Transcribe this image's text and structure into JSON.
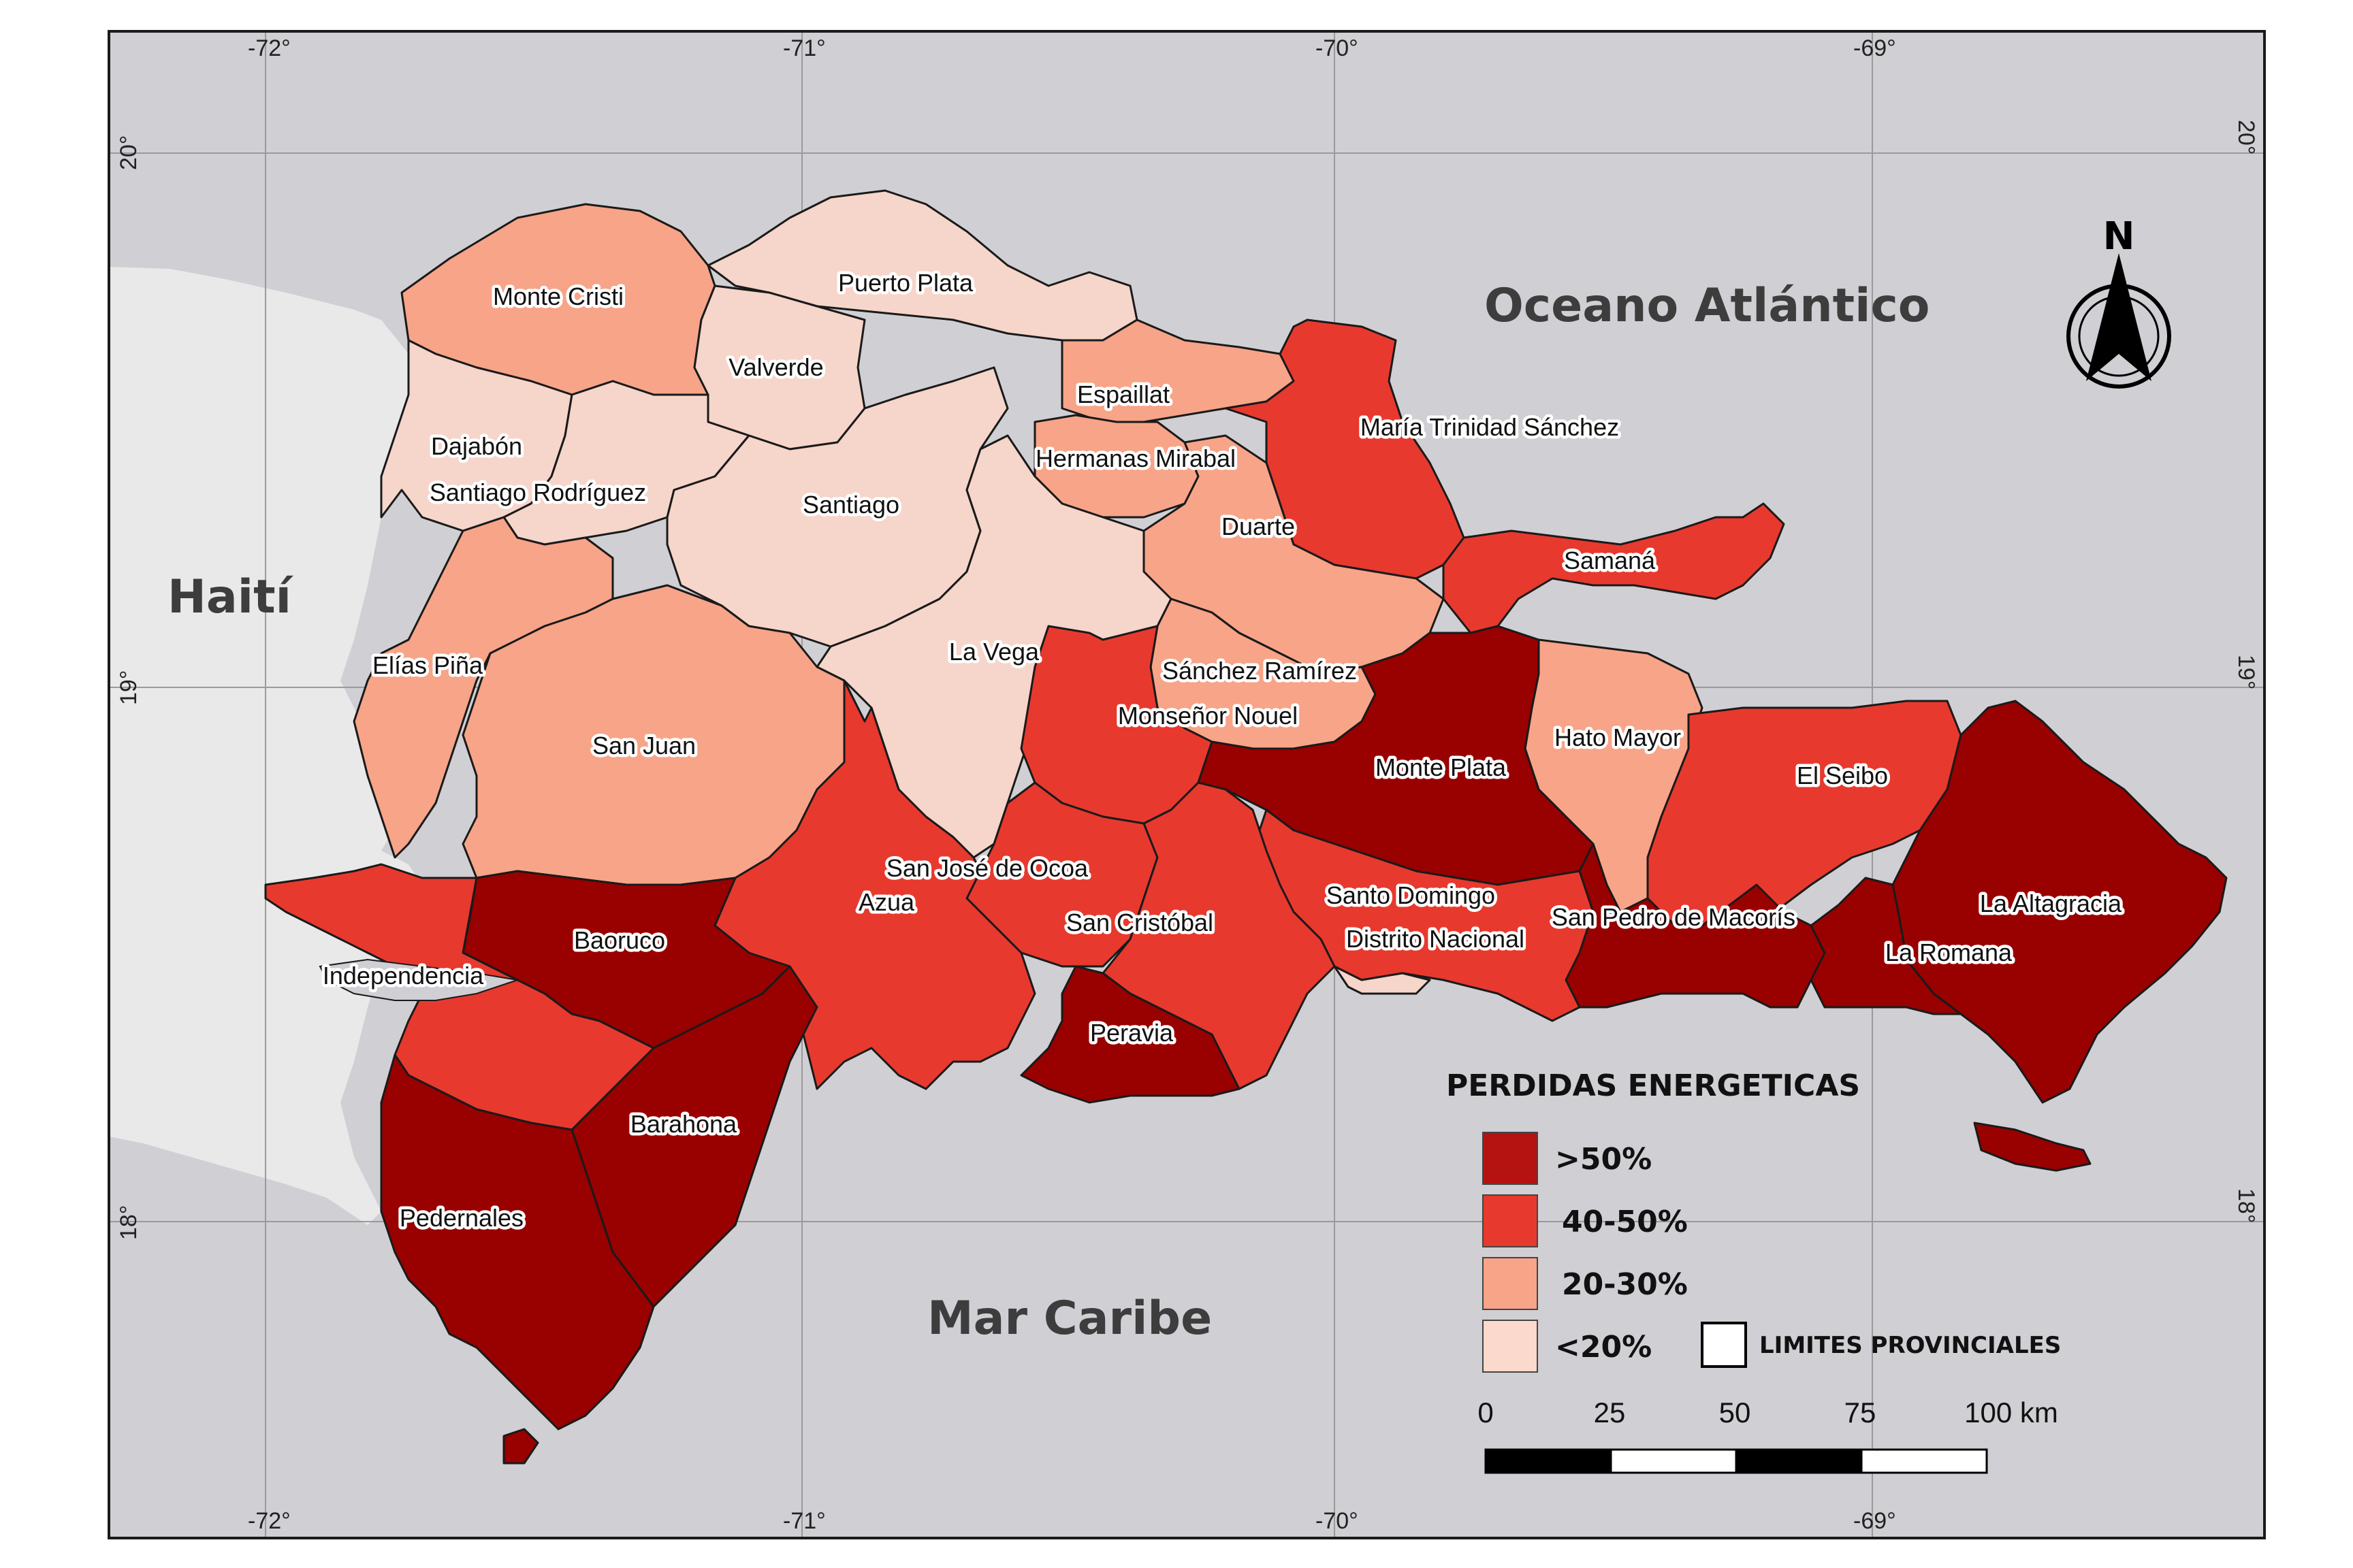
{
  "map": {
    "water_color": "#cfcfd4",
    "neighbor_land_color": "#e9e9e9",
    "frame_color": "#1a1a1a"
  },
  "coordinates": {
    "lon_top": [
      "-72°",
      "-71°",
      "-70°",
      "-69°"
    ],
    "lon_bottom": [
      "-72°",
      "-71°",
      "-70°",
      "-69°"
    ],
    "lat_left": [
      "20°",
      "19°",
      "18°"
    ],
    "lat_right": [
      "20°",
      "19°",
      "18°"
    ]
  },
  "regions": {
    "ocean": "Oceano Atlántico",
    "haiti": "Haití",
    "caribbean": "Mar Caribe"
  },
  "north_arrow": {
    "label": "N"
  },
  "classes": {
    "gt50": {
      "label": ">50%",
      "color": "#990000"
    },
    "c40_50": {
      "label": "40-50%",
      "color": "#e8392e"
    },
    "c20_30": {
      "label": "20-30%",
      "color": "#f7a488"
    },
    "lt20": {
      "label": "<20%",
      "color": "#f6d5ca"
    }
  },
  "legend": {
    "title": "PERDIDAS ENERGETICAS",
    "items": [
      {
        "label": ">50%",
        "color": "#b51212"
      },
      {
        "label": "40-50%",
        "color": "#e8392e"
      },
      {
        "label": "20-30%",
        "color": "#f7a488"
      },
      {
        "label": "<20%",
        "color": "#fcd9cd"
      }
    ],
    "boundaries_label": "LIMITES PROVINCIALES"
  },
  "scale_bar": {
    "ticks": [
      "0",
      "25",
      "50",
      "75",
      "100 km"
    ]
  },
  "provinces": [
    {
      "name": "Monte Cristi",
      "class": "c20_30"
    },
    {
      "name": "Puerto Plata",
      "class": "lt20"
    },
    {
      "name": "Valverde",
      "class": "lt20"
    },
    {
      "name": "Dajabón",
      "class": "lt20"
    },
    {
      "name": "Santiago Rodríguez",
      "class": "lt20"
    },
    {
      "name": "Santiago",
      "class": "lt20"
    },
    {
      "name": "Espaillat",
      "class": "c20_30"
    },
    {
      "name": "Hermanas Mirabal",
      "class": "c20_30"
    },
    {
      "name": "María Trinidad Sánchez",
      "class": "c40_50"
    },
    {
      "name": "Duarte",
      "class": "c20_30"
    },
    {
      "name": "Samaná",
      "class": "c40_50"
    },
    {
      "name": "La Vega",
      "class": "lt20"
    },
    {
      "name": "Sánchez Ramírez",
      "class": "c20_30"
    },
    {
      "name": "Monseñor Nouel",
      "class": "c40_50"
    },
    {
      "name": "Elías Piña",
      "class": "c20_30"
    },
    {
      "name": "San Juan",
      "class": "c20_30"
    },
    {
      "name": "Hato Mayor",
      "class": "c20_30"
    },
    {
      "name": "Monte Plata",
      "class": "gt50"
    },
    {
      "name": "El Seibo",
      "class": "c40_50"
    },
    {
      "name": "San José de Ocoa",
      "class": "c40_50"
    },
    {
      "name": "Azua",
      "class": "c40_50"
    },
    {
      "name": "La Altagracia",
      "class": "gt50"
    },
    {
      "name": "Santo Domingo",
      "class": "c40_50"
    },
    {
      "name": "San Pedro de Macorís",
      "class": "gt50"
    },
    {
      "name": "Baoruco",
      "class": "gt50"
    },
    {
      "name": "San Cristóbal",
      "class": "c40_50"
    },
    {
      "name": "Distrito Nacional",
      "class": "lt20"
    },
    {
      "name": "La Romana",
      "class": "gt50"
    },
    {
      "name": "Independencia",
      "class": "c40_50"
    },
    {
      "name": "Peravia",
      "class": "gt50"
    },
    {
      "name": "Barahona",
      "class": "gt50"
    },
    {
      "name": "Pedernales",
      "class": "gt50"
    }
  ]
}
